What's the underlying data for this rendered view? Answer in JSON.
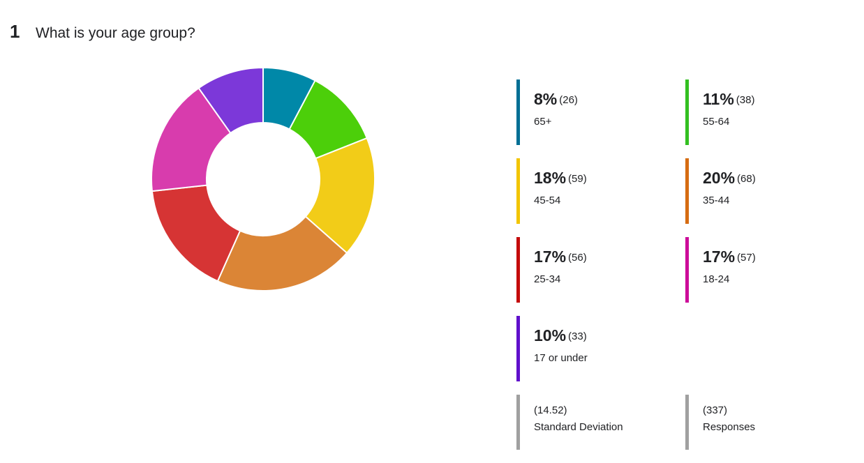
{
  "question": {
    "number": "1",
    "text": "What is your age group?"
  },
  "chart_data": {
    "type": "pie",
    "donut": true,
    "title": "",
    "slices": [
      {
        "label": "65+",
        "percent": "8%",
        "count": "(26)",
        "value": 26,
        "color": "#0088a8",
        "bar_color": "#006f94"
      },
      {
        "label": "55-64",
        "percent": "11%",
        "count": "(38)",
        "value": 38,
        "color": "#4ccf0a",
        "bar_color": "#33c021"
      },
      {
        "label": "45-54",
        "percent": "18%",
        "count": "(59)",
        "value": 59,
        "color": "#f2cc18",
        "bar_color": "#f2c500"
      },
      {
        "label": "35-44",
        "percent": "20%",
        "count": "(68)",
        "value": 68,
        "color": "#db8536",
        "bar_color": "#d66c12"
      },
      {
        "label": "25-34",
        "percent": "17%",
        "count": "(56)",
        "value": 56,
        "color": "#d63434",
        "bar_color": "#c40b0b"
      },
      {
        "label": "18-24",
        "percent": "17%",
        "count": "(57)",
        "value": 57,
        "color": "#d83cad",
        "bar_color": "#cc0c99"
      },
      {
        "label": "17 or under",
        "percent": "10%",
        "count": "(33)",
        "value": 33,
        "color": "#7c38d9",
        "bar_color": "#6010cc"
      }
    ]
  },
  "stats": [
    {
      "value": "(14.52)",
      "label": "Standard Deviation"
    },
    {
      "value": "(337)",
      "label": "Responses"
    }
  ]
}
